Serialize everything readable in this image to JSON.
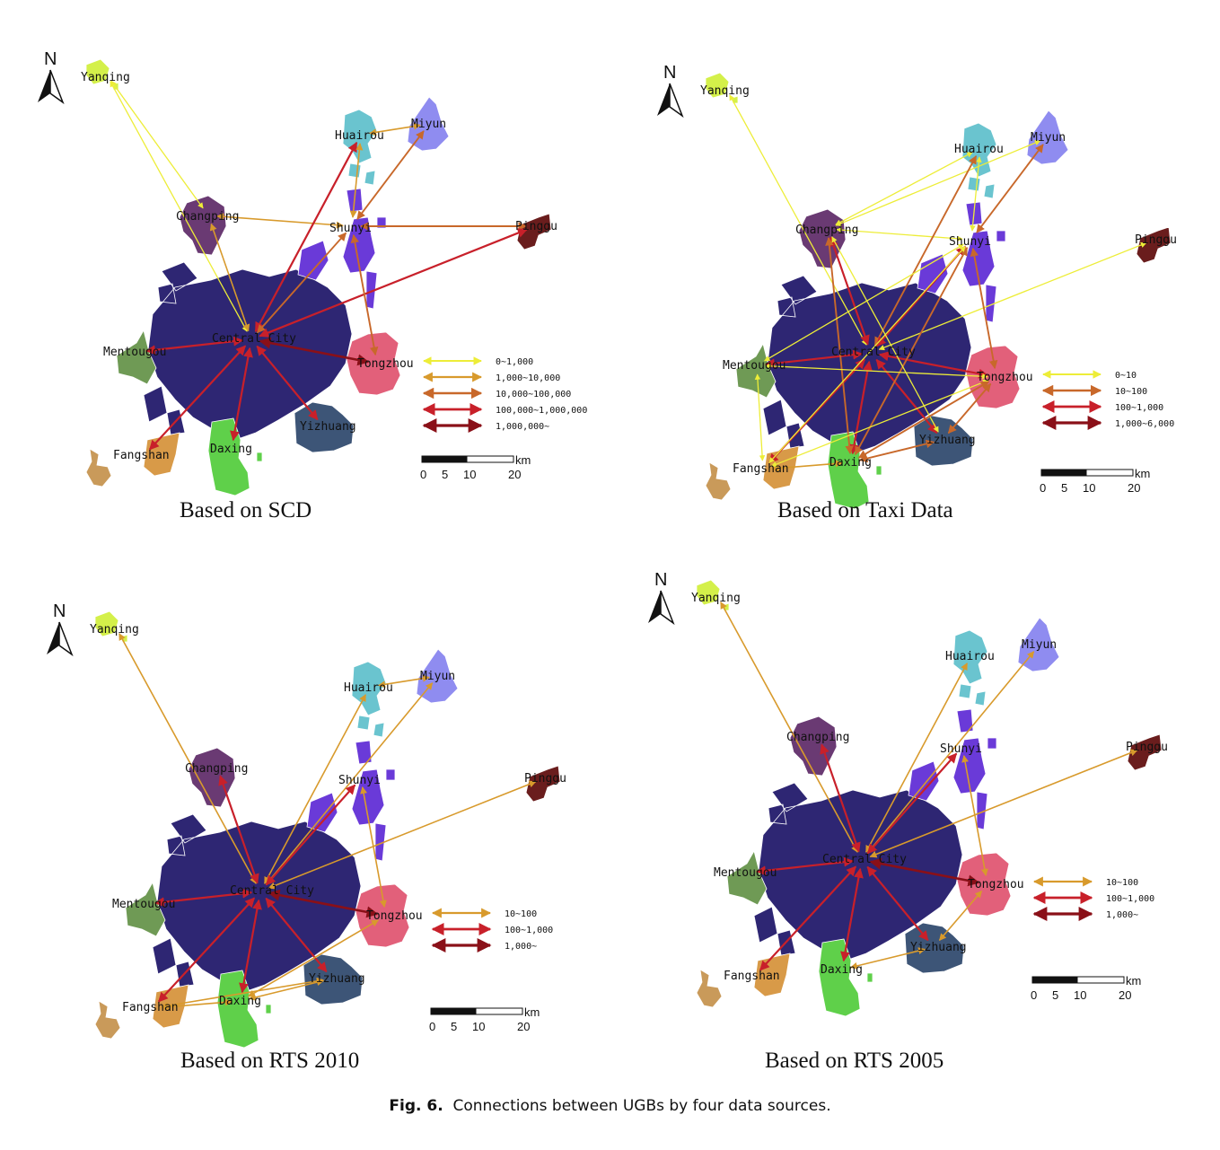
{
  "colors": {
    "central": "#2e2673",
    "yanqing": "#d4f04a",
    "huairou": "#6ac4cf",
    "miyun": "#8f8cf0",
    "changping": "#6a3a73",
    "shunyi": "#6a3ad8",
    "pinggu": "#6a1d1d",
    "tongzhou": "#e2607a",
    "yizhuang": "#3d5577",
    "daxing": "#5fd04a",
    "fangshan_hinter": "#c99a5a",
    "fangshan": "#d89a48",
    "mentougou": "#6f9a55",
    "arrow_level1": "#eded38",
    "arrow_level2": "#d89a2c",
    "arrow_level3": "#c8682a",
    "arrow_level4": "#c8202a",
    "arrow_level5": "#8a1018"
  },
  "compass": {
    "letter": "N"
  },
  "towns": {
    "yanqing": "Yanqing",
    "huairou": "Huairou",
    "miyun": "Miyun",
    "changping": "Changping",
    "shunyi": "Shunyi",
    "pinggu": "Pinggu",
    "central": "Central City",
    "mentougou": "Mentougou",
    "tongzhou": "Tongzhou",
    "yizhuang": "Yizhuang",
    "daxing": "Daxing",
    "fangshan": "Fangshan"
  },
  "scale": {
    "unit": "km",
    "ticks": [
      "0",
      "5",
      "10",
      "20"
    ]
  },
  "panels": [
    {
      "id": "scd",
      "caption": "Based on SCD",
      "legend": [
        "0~1,000",
        "1,000~10,000",
        "10,000~100,000",
        "100,000~1,000,000",
        "1,000,000~"
      ],
      "connections": [
        {
          "from": "yanqing",
          "to": "changping",
          "level": 1
        },
        {
          "from": "yanqing",
          "to": "central",
          "level": 1
        },
        {
          "from": "changping",
          "to": "shunyi",
          "level": 2
        },
        {
          "from": "changping",
          "to": "central",
          "level": 2
        },
        {
          "from": "central",
          "to": "huairou",
          "level": 4
        },
        {
          "from": "shunyi",
          "to": "huairou",
          "level": 2
        },
        {
          "from": "shunyi",
          "to": "miyun",
          "level": 3
        },
        {
          "from": "huairou",
          "to": "miyun",
          "level": 2
        },
        {
          "from": "shunyi",
          "to": "pinggu",
          "level": 3
        },
        {
          "from": "central",
          "to": "pinggu",
          "level": 4
        },
        {
          "from": "central",
          "to": "shunyi",
          "level": 3
        },
        {
          "from": "shunyi",
          "to": "tongzhou",
          "level": 3
        },
        {
          "from": "central",
          "to": "tongzhou",
          "level": 5
        },
        {
          "from": "central",
          "to": "mentougou",
          "level": 4
        },
        {
          "from": "central",
          "to": "fangshan",
          "level": 4
        },
        {
          "from": "central",
          "to": "daxing",
          "level": 4
        },
        {
          "from": "central",
          "to": "yizhuang",
          "level": 4
        }
      ]
    },
    {
      "id": "taxi",
      "caption": "Based on Taxi Data",
      "legend": [
        "0~10",
        "10~100",
        "100~1,000",
        "1,000~6,000"
      ],
      "connections": [
        {
          "from": "yanqing",
          "to": "central",
          "level": 1
        },
        {
          "from": "changping",
          "to": "huairou",
          "level": 1
        },
        {
          "from": "changping",
          "to": "miyun",
          "level": 1
        },
        {
          "from": "changping",
          "to": "shunyi",
          "level": 1
        },
        {
          "from": "shunyi",
          "to": "miyun",
          "level": 3
        },
        {
          "from": "shunyi",
          "to": "huairou",
          "level": 1
        },
        {
          "from": "central",
          "to": "huairou",
          "level": 3
        },
        {
          "from": "central",
          "to": "pinggu",
          "level": 1
        },
        {
          "from": "central",
          "to": "shunyi",
          "level": 4
        },
        {
          "from": "central",
          "to": "changping",
          "level": 4
        },
        {
          "from": "central",
          "to": "tongzhou",
          "level": 4
        },
        {
          "from": "central",
          "to": "mentougou",
          "level": 4
        },
        {
          "from": "central",
          "to": "daxing",
          "level": 4
        },
        {
          "from": "central",
          "to": "yizhuang",
          "level": 4
        },
        {
          "from": "central",
          "to": "fangshan",
          "level": 4
        },
        {
          "from": "shunyi",
          "to": "tongzhou",
          "level": 3
        },
        {
          "from": "shunyi",
          "to": "daxing",
          "level": 3
        },
        {
          "from": "changping",
          "to": "daxing",
          "level": 3
        },
        {
          "from": "changping",
          "to": "yizhuang",
          "level": 1
        },
        {
          "from": "mentougou",
          "to": "fangshan",
          "level": 1
        },
        {
          "from": "mentougou",
          "to": "tongzhou",
          "level": 1
        },
        {
          "from": "mentougou",
          "to": "shunyi",
          "level": 1
        },
        {
          "from": "fangshan",
          "to": "daxing",
          "level": 2
        },
        {
          "from": "fangshan",
          "to": "tongzhou",
          "level": 1
        },
        {
          "from": "fangshan",
          "to": "shunyi",
          "level": 1
        },
        {
          "from": "daxing",
          "to": "tongzhou",
          "level": 3
        },
        {
          "from": "yizhuang",
          "to": "tongzhou",
          "level": 3
        },
        {
          "from": "daxing",
          "to": "yizhuang",
          "level": 3
        }
      ]
    },
    {
      "id": "rts2010",
      "caption": "Based on RTS 2010",
      "legend": [
        "10~100",
        "100~1,000",
        "1,000~"
      ],
      "connections": [
        {
          "from": "yanqing",
          "to": "central",
          "level": 2
        },
        {
          "from": "central",
          "to": "huairou",
          "level": 2
        },
        {
          "from": "central",
          "to": "miyun",
          "level": 2
        },
        {
          "from": "huairou",
          "to": "miyun",
          "level": 2
        },
        {
          "from": "central",
          "to": "pinggu",
          "level": 2
        },
        {
          "from": "central",
          "to": "changping",
          "level": 4
        },
        {
          "from": "central",
          "to": "shunyi",
          "level": 4
        },
        {
          "from": "central",
          "to": "tongzhou",
          "level": 5
        },
        {
          "from": "central",
          "to": "mentougou",
          "level": 4
        },
        {
          "from": "central",
          "to": "fangshan",
          "level": 4
        },
        {
          "from": "central",
          "to": "daxing",
          "level": 4
        },
        {
          "from": "central",
          "to": "yizhuang",
          "level": 4
        },
        {
          "from": "shunyi",
          "to": "tongzhou",
          "level": 2
        },
        {
          "from": "fangshan",
          "to": "daxing",
          "level": 2
        },
        {
          "from": "fangshan",
          "to": "yizhuang",
          "level": 2
        },
        {
          "from": "daxing",
          "to": "yizhuang",
          "level": 2
        },
        {
          "from": "daxing",
          "to": "tongzhou",
          "level": 2
        }
      ]
    },
    {
      "id": "rts2005",
      "caption": "Based on RTS 2005",
      "legend": [
        "10~100",
        "100~1,000",
        "1,000~"
      ],
      "connections": [
        {
          "from": "yanqing",
          "to": "central",
          "level": 2
        },
        {
          "from": "central",
          "to": "huairou",
          "level": 2
        },
        {
          "from": "central",
          "to": "miyun",
          "level": 2
        },
        {
          "from": "central",
          "to": "pinggu",
          "level": 2
        },
        {
          "from": "central",
          "to": "changping",
          "level": 4
        },
        {
          "from": "central",
          "to": "shunyi",
          "level": 4
        },
        {
          "from": "central",
          "to": "tongzhou",
          "level": 5
        },
        {
          "from": "central",
          "to": "mentougou",
          "level": 4
        },
        {
          "from": "central",
          "to": "fangshan",
          "level": 4
        },
        {
          "from": "central",
          "to": "daxing",
          "level": 4
        },
        {
          "from": "central",
          "to": "yizhuang",
          "level": 4
        },
        {
          "from": "shunyi",
          "to": "tongzhou",
          "level": 2
        },
        {
          "from": "daxing",
          "to": "yizhuang",
          "level": 2
        },
        {
          "from": "yizhuang",
          "to": "tongzhou",
          "level": 2
        }
      ]
    }
  ],
  "figure_caption": {
    "label": "Fig. 6.",
    "text": "Connections between UGBs by four data sources."
  }
}
